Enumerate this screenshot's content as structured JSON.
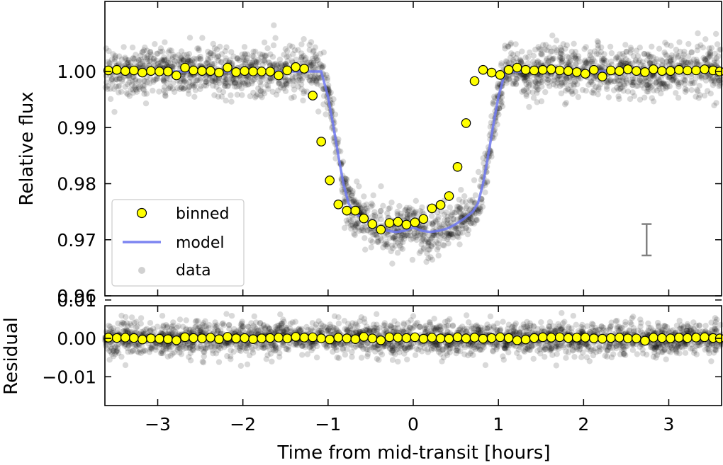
{
  "chart_data": [
    {
      "id": "top",
      "type": "scatter",
      "title": "",
      "xlabel": "",
      "ylabel": "Relative flux",
      "xlim": [
        -3.62,
        3.62
      ],
      "ylim": [
        0.96,
        1.0125
      ],
      "yticks": [
        0.96,
        0.97,
        0.98,
        0.99,
        1.0
      ],
      "yticklabels": [
        "0.96",
        "0.97",
        "0.98",
        "0.99",
        "1.00"
      ],
      "xticks": [
        -3,
        -2,
        -1,
        0,
        1,
        2,
        3
      ],
      "model": {
        "label": "model",
        "color": "#6f78f0",
        "x": [
          -3.62,
          -1.08,
          -1.0,
          -0.94,
          -0.88,
          -0.82,
          -0.76,
          -0.7,
          -0.6,
          -0.5,
          -0.4,
          -0.3,
          -0.2,
          -0.1,
          0.0,
          0.1,
          0.2,
          0.3,
          0.4,
          0.5,
          0.6,
          0.7,
          0.76,
          0.82,
          0.88,
          0.94,
          1.0,
          1.08,
          3.62
        ],
        "y": [
          1.0,
          1.0,
          0.9955,
          0.9905,
          0.985,
          0.98,
          0.9765,
          0.975,
          0.9738,
          0.9728,
          0.972,
          0.9716,
          0.9714,
          0.9716,
          0.9722,
          0.9716,
          0.9714,
          0.9716,
          0.972,
          0.9728,
          0.9738,
          0.975,
          0.9765,
          0.98,
          0.985,
          0.9905,
          0.9955,
          1.0,
          1.0
        ]
      },
      "binned": {
        "label": "binned",
        "color": "#ffff00",
        "edgecolor": "#000000",
        "x": [
          -3.58,
          -3.48,
          -3.38,
          -3.28,
          -3.18,
          -3.08,
          -2.98,
          -2.88,
          -2.78,
          -2.68,
          -2.58,
          -2.48,
          -2.38,
          -2.28,
          -2.18,
          -2.08,
          -1.98,
          -1.88,
          -1.78,
          -1.68,
          -1.58,
          -1.48,
          -1.38,
          -1.28,
          -1.18,
          -1.08,
          -0.98,
          -0.88,
          -0.78,
          -0.68,
          -0.58,
          -0.48,
          -0.38,
          -0.28,
          -0.18,
          -0.08,
          0.02,
          0.12,
          0.22,
          0.32,
          0.42,
          0.52,
          0.62,
          0.72,
          0.82,
          0.92,
          1.02,
          1.12,
          1.22,
          1.32,
          1.42,
          1.52,
          1.62,
          1.72,
          1.82,
          1.92,
          2.02,
          2.12,
          2.22,
          2.32,
          2.42,
          2.52,
          2.62,
          2.72,
          2.82,
          2.92,
          3.02,
          3.12,
          3.22,
          3.32,
          3.42,
          3.52,
          3.6
        ],
        "y": [
          1.0002,
          1.0003,
          1.0001,
          1.0002,
          0.9998,
          1.0001,
          1.0,
          1.0,
          0.9993,
          1.0007,
          1.0002,
          1.0001,
          1.0001,
          0.9998,
          1.0007,
          0.9999,
          1.0001,
          1.0,
          1.0,
          1.0,
          0.9993,
          1.0002,
          1.0008,
          1.0005,
          0.9957,
          0.9875,
          0.9806,
          0.9763,
          0.9752,
          0.9752,
          0.9738,
          0.9728,
          0.9718,
          0.973,
          0.9732,
          0.9727,
          0.9731,
          0.9737,
          0.9756,
          0.9762,
          0.9778,
          0.983,
          0.9908,
          0.9983,
          1.0003,
          0.9998,
          0.9994,
          1.0003,
          1.0007,
          1.0003,
          1.0002,
          1.0003,
          1.0004,
          1.0002,
          1.0001,
          0.9999,
          0.9996,
          1.0003,
          0.9991,
          1.0002,
          1.0001,
          1.0004,
          1.0001,
          0.9999,
          1.0004,
          1.0001,
          1.0001,
          1.0003,
          1.0002,
          1.0002,
          1.0004,
          1.0002,
          1.0
        ]
      },
      "data": {
        "label": "data",
        "color": "#000000",
        "alpha": 0.15,
        "scatter_sigma": 0.0022,
        "n_points": 2600,
        "seed": 42
      },
      "errorbar": {
        "x": 2.74,
        "y": 0.97,
        "yerr": 0.0028,
        "color": "#808080"
      },
      "legend": {
        "location": "lower-left",
        "entries": [
          "binned",
          "model",
          "data"
        ]
      }
    },
    {
      "id": "bottom",
      "type": "scatter",
      "title": "",
      "xlabel": "Time from mid-transit [hours]",
      "ylabel": "Residual",
      "xlim": [
        -3.62,
        3.62
      ],
      "ylim": [
        -0.0175,
        0.0085
      ],
      "yticks": [
        -0.01,
        0.0,
        0.01
      ],
      "yticklabels": [
        "−0.01",
        "0.00",
        "0.01"
      ],
      "xticks": [
        -3,
        -2,
        -1,
        0,
        1,
        2,
        3
      ],
      "xticklabels": [
        "−3",
        "−2",
        "−1",
        "0",
        "1",
        "2",
        "3"
      ],
      "binned": {
        "color": "#ffff00",
        "edgecolor": "#000000",
        "x": [
          -3.58,
          -3.48,
          -3.38,
          -3.28,
          -3.18,
          -3.08,
          -2.98,
          -2.88,
          -2.78,
          -2.68,
          -2.58,
          -2.48,
          -2.38,
          -2.28,
          -2.18,
          -2.08,
          -1.98,
          -1.88,
          -1.78,
          -1.68,
          -1.58,
          -1.48,
          -1.38,
          -1.28,
          -1.18,
          -1.08,
          -0.98,
          -0.88,
          -0.78,
          -0.68,
          -0.58,
          -0.48,
          -0.38,
          -0.28,
          -0.18,
          -0.08,
          0.02,
          0.12,
          0.22,
          0.32,
          0.42,
          0.52,
          0.62,
          0.72,
          0.82,
          0.92,
          1.02,
          1.12,
          1.22,
          1.32,
          1.42,
          1.52,
          1.62,
          1.72,
          1.82,
          1.92,
          2.02,
          2.12,
          2.22,
          2.32,
          2.42,
          2.52,
          2.62,
          2.72,
          2.82,
          2.92,
          3.02,
          3.12,
          3.22,
          3.32,
          3.42,
          3.52,
          3.6
        ],
        "y": [
          0.0002,
          0.0001,
          0.0002,
          0.0001,
          -0.0003,
          0.0,
          -0.0001,
          -0.0002,
          -0.0005,
          0.0003,
          0.0001,
          0.0,
          0.0002,
          -0.0002,
          0.0004,
          0.0,
          0.0001,
          -0.0002,
          0.0,
          0.0001,
          0.0002,
          0.0,
          0.0004,
          0.0002,
          0.0003,
          0.0,
          -0.0003,
          0.0002,
          0.0,
          -0.0002,
          0.0004,
          0.0,
          -0.0005,
          0.0003,
          0.0002,
          0.0001,
          0.0003,
          -0.0001,
          0.0002,
          0.0,
          -0.0001,
          0.0003,
          0.0,
          0.0002,
          -0.0001,
          0.0001,
          0.0003,
          0.0001,
          -0.0005,
          -0.0003,
          0.0001,
          0.0003,
          0.0002,
          0.0003,
          0.0001,
          0.0002,
          0.0002,
          0.0,
          -0.0001,
          0.0001,
          0.0002,
          0.0,
          0.0,
          -0.0006,
          0.0002,
          0.0001,
          0.0,
          0.0002,
          0.0001,
          0.0002,
          0.0003,
          0.0001,
          0.0
        ]
      },
      "data": {
        "color": "#000000",
        "alpha": 0.15,
        "scatter_sigma": 0.0022,
        "n_points": 2600,
        "seed": 43
      }
    }
  ]
}
